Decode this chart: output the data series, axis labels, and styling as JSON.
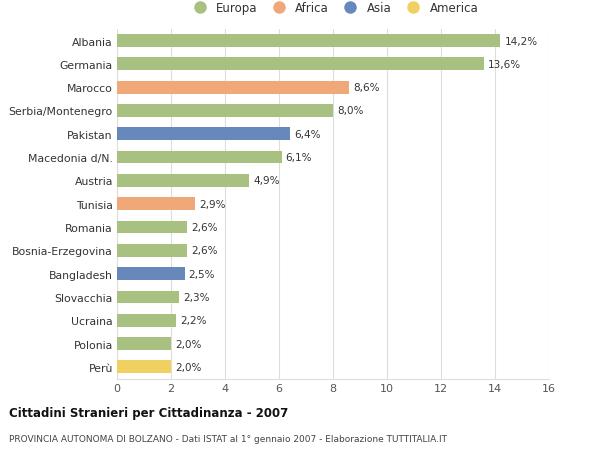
{
  "categories": [
    "Albania",
    "Germania",
    "Marocco",
    "Serbia/Montenegro",
    "Pakistan",
    "Macedonia d/N.",
    "Austria",
    "Tunisia",
    "Romania",
    "Bosnia-Erzegovina",
    "Bangladesh",
    "Slovacchia",
    "Ucraina",
    "Polonia",
    "Perù"
  ],
  "values": [
    14.2,
    13.6,
    8.6,
    8.0,
    6.4,
    6.1,
    4.9,
    2.9,
    2.6,
    2.6,
    2.5,
    2.3,
    2.2,
    2.0,
    2.0
  ],
  "labels": [
    "14,2%",
    "13,6%",
    "8,6%",
    "8,0%",
    "6,4%",
    "6,1%",
    "4,9%",
    "2,9%",
    "2,6%",
    "2,6%",
    "2,5%",
    "2,3%",
    "2,2%",
    "2,0%",
    "2,0%"
  ],
  "continent": [
    "Europa",
    "Europa",
    "Africa",
    "Europa",
    "Asia",
    "Europa",
    "Europa",
    "Africa",
    "Europa",
    "Europa",
    "Asia",
    "Europa",
    "Europa",
    "Europa",
    "America"
  ],
  "colors": {
    "Europa": "#a8c080",
    "Africa": "#f0a878",
    "Asia": "#6688bb",
    "America": "#f0d060"
  },
  "legend_order": [
    "Europa",
    "Africa",
    "Asia",
    "America"
  ],
  "title": "Cittadini Stranieri per Cittadinanza - 2007",
  "subtitle": "PROVINCIA AUTONOMA DI BOLZANO - Dati ISTAT al 1° gennaio 2007 - Elaborazione TUTTITALIA.IT",
  "xlim": [
    0,
    16
  ],
  "xticks": [
    0,
    2,
    4,
    6,
    8,
    10,
    12,
    14,
    16
  ],
  "background_color": "#ffffff",
  "grid_color": "#dddddd",
  "bar_height": 0.55
}
